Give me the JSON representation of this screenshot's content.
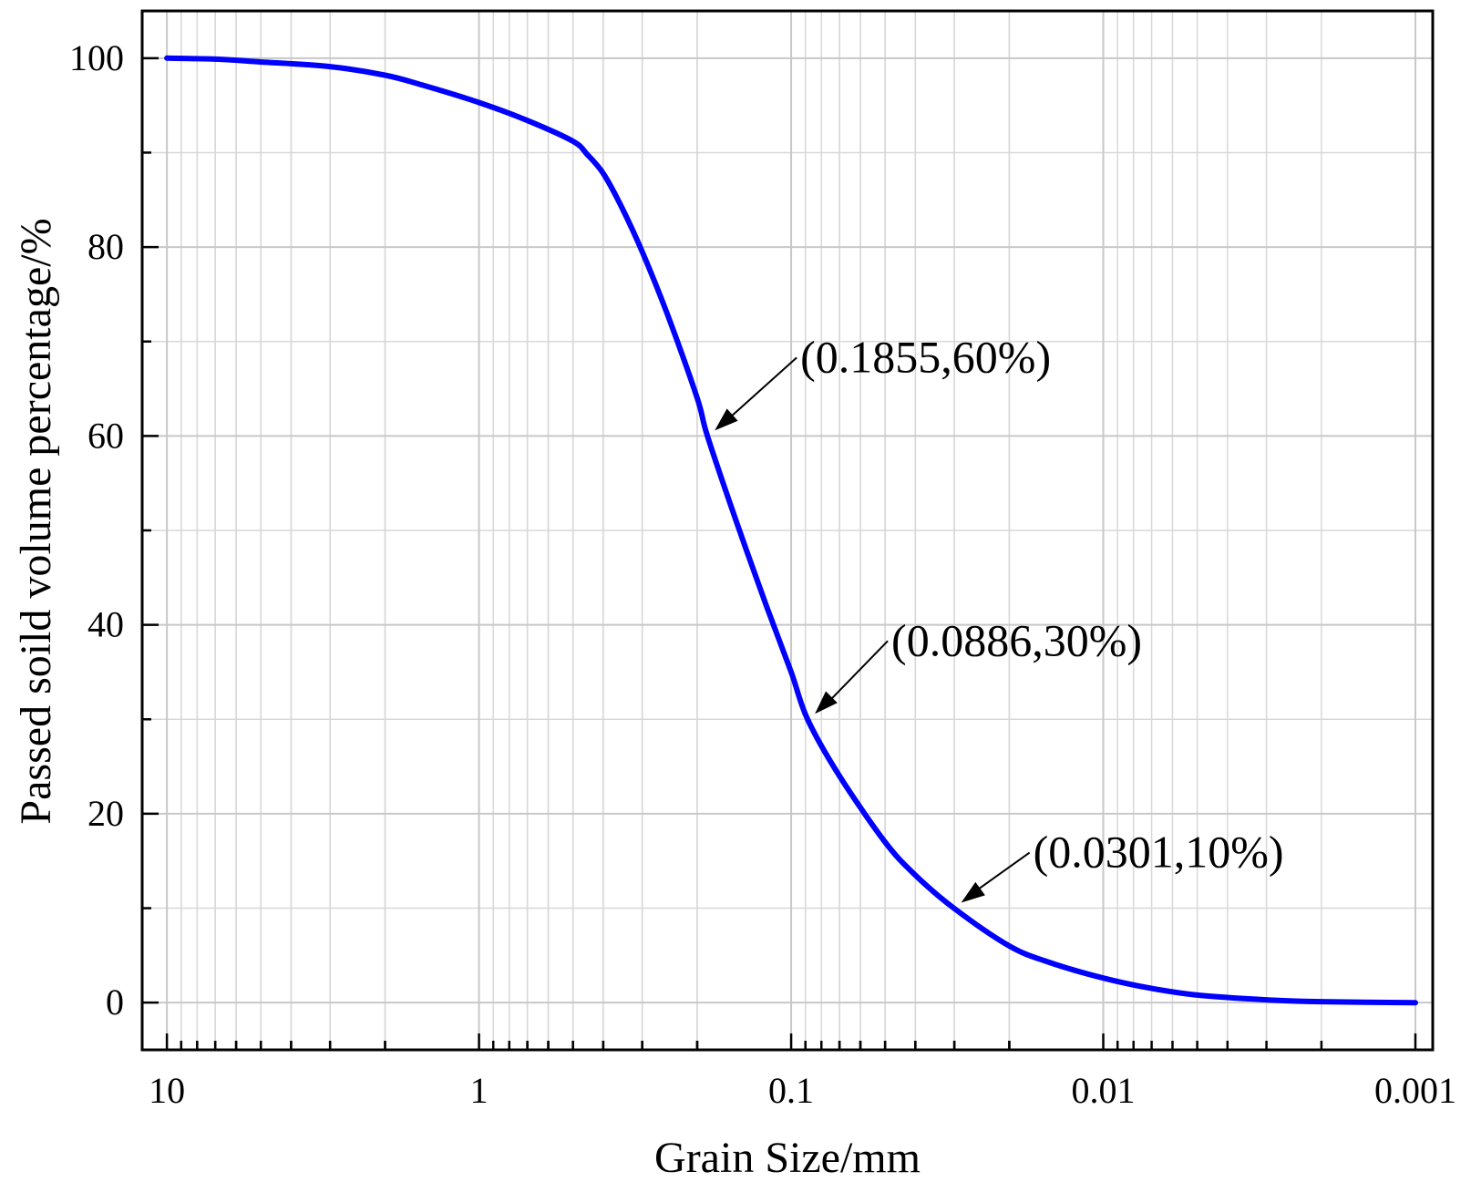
{
  "chart_data": {
    "type": "line",
    "xlabel": "Grain Size/mm",
    "ylabel": "Passed soild volume percentage/%",
    "x_scale": "log",
    "x_reversed": true,
    "xlim": [
      12,
      0.00088
    ],
    "ylim": [
      -5,
      105
    ],
    "grid": true,
    "x_ticks": [
      10,
      1,
      0.1,
      0.01,
      0.001
    ],
    "x_tick_labels": [
      "10",
      "1",
      "0.1",
      "0.01",
      "0.001"
    ],
    "y_ticks": [
      0,
      20,
      40,
      60,
      80,
      100
    ],
    "y_tick_labels": [
      "0",
      "20",
      "40",
      "60",
      "80",
      "100"
    ],
    "series": [
      {
        "color": "#0000ff",
        "x": [
          10,
          7,
          5,
          3,
          2,
          1.5,
          1,
          0.7,
          0.5,
          0.45,
          0.4,
          0.35,
          0.3,
          0.25,
          0.2,
          0.1855,
          0.15,
          0.12,
          0.1,
          0.0886,
          0.07,
          0.05,
          0.04,
          0.0301,
          0.02,
          0.015,
          0.01,
          0.007,
          0.005,
          0.003,
          0.002,
          0.001
        ],
        "y": [
          100,
          99.9,
          99.6,
          99.1,
          98.2,
          97.1,
          95.3,
          93.4,
          91.2,
          89.8,
          87.8,
          84.3,
          79.5,
          73,
          64,
          60,
          51,
          42,
          35,
          30,
          24,
          17,
          13.5,
          10,
          6,
          4.3,
          2.6,
          1.5,
          0.8,
          0.3,
          0.1,
          0
        ]
      }
    ],
    "annotations": [
      {
        "text": "(0.1855,60%)",
        "x": 0.1855,
        "y": 60
      },
      {
        "text": "(0.0886,30%)",
        "x": 0.0886,
        "y": 30
      },
      {
        "text": "(0.0301,10%)",
        "x": 0.0301,
        "y": 10
      }
    ]
  }
}
